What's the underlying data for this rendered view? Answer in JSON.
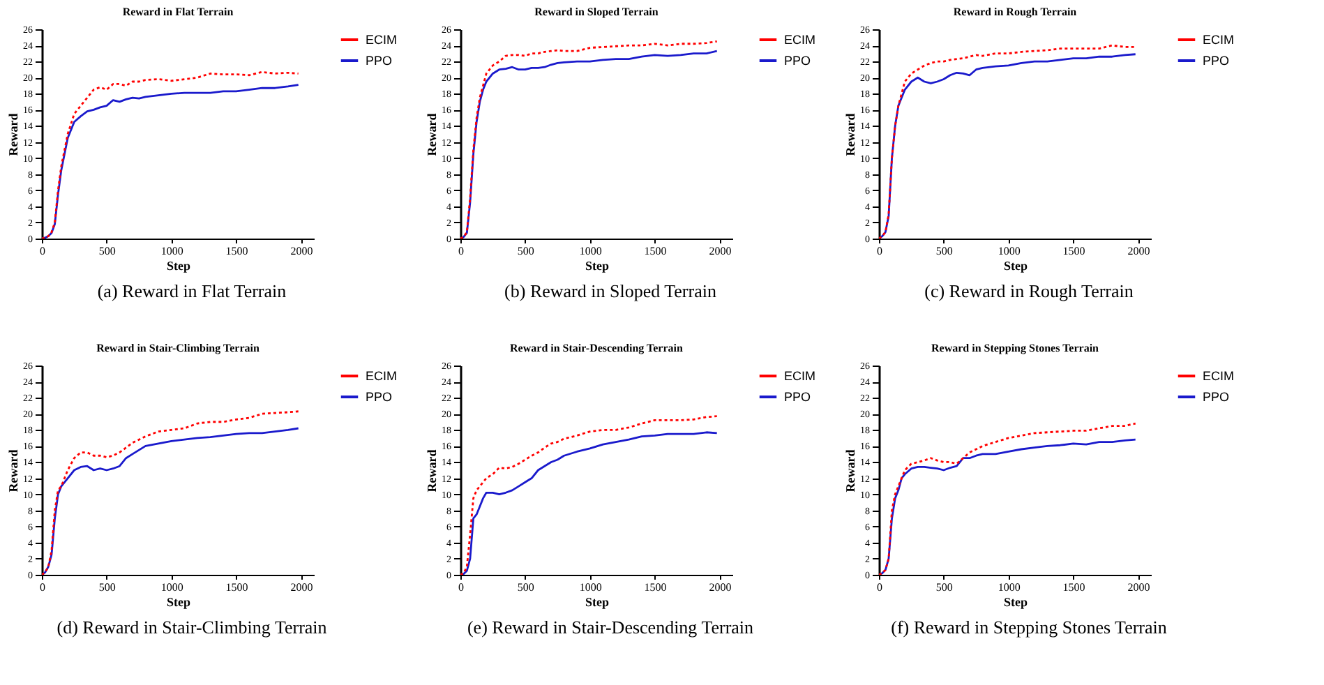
{
  "chart_data": [
    {
      "type": "line",
      "title": "Reward in Flat Terrain",
      "xlabel": "Step",
      "ylabel": "Reward",
      "annotations": [
        "(a) Reward in Flat Terrain"
      ],
      "xlim": [
        0,
        2100
      ],
      "ylim": [
        0,
        26
      ],
      "xticks": [
        0,
        500,
        1000,
        1500,
        2000
      ],
      "yticks": [
        0,
        2,
        4,
        6,
        8,
        10,
        12,
        14,
        16,
        18,
        20,
        22,
        24,
        26
      ],
      "grid": false,
      "legend": "top right",
      "x": [
        0,
        25,
        50,
        75,
        100,
        125,
        150,
        175,
        200,
        250,
        300,
        350,
        400,
        450,
        500,
        550,
        600,
        650,
        700,
        750,
        800,
        900,
        1000,
        1100,
        1200,
        1300,
        1400,
        1500,
        1600,
        1700,
        1800,
        1900,
        1980
      ],
      "series": [
        {
          "name": "ECIM",
          "color": "#ff0000",
          "line_style": "dotted",
          "values": [
            0,
            0.1,
            0.3,
            0.8,
            2,
            6,
            9,
            11,
            13,
            15.5,
            16.5,
            17.5,
            18.5,
            18.8,
            18.5,
            19.2,
            19.2,
            19,
            19.5,
            19.5,
            19.7,
            19.8,
            19.6,
            19.8,
            20,
            20.5,
            20.4,
            20.4,
            20.3,
            20.7,
            20.5,
            20.6,
            20.5
          ]
        },
        {
          "name": "PPO",
          "color": "#1a1acc",
          "line_style": "solid",
          "values": [
            0,
            0.1,
            0.3,
            0.7,
            1.8,
            5.5,
            8.5,
            10.5,
            12.5,
            14.5,
            15.2,
            15.8,
            16,
            16.3,
            16.5,
            17.2,
            17,
            17.3,
            17.5,
            17.4,
            17.6,
            17.8,
            18,
            18.1,
            18.1,
            18.1,
            18.3,
            18.3,
            18.5,
            18.7,
            18.7,
            18.9,
            19.1
          ]
        }
      ]
    },
    {
      "type": "line",
      "title": "Reward in Sloped Terrain",
      "xlabel": "Step",
      "ylabel": "Reward",
      "annotations": [
        "(b) Reward in Sloped Terrain"
      ],
      "xlim": [
        0,
        2100
      ],
      "ylim": [
        0,
        26
      ],
      "xticks": [
        0,
        500,
        1000,
        1500,
        2000
      ],
      "yticks": [
        0,
        2,
        4,
        6,
        8,
        10,
        12,
        14,
        16,
        18,
        20,
        22,
        24,
        26
      ],
      "grid": false,
      "legend": "top right",
      "x": [
        0,
        25,
        50,
        75,
        100,
        125,
        150,
        175,
        200,
        250,
        300,
        350,
        400,
        450,
        500,
        550,
        600,
        650,
        700,
        750,
        800,
        900,
        1000,
        1100,
        1200,
        1300,
        1400,
        1500,
        1600,
        1700,
        1800,
        1900,
        1980
      ],
      "series": [
        {
          "name": "ECIM",
          "color": "#ff0000",
          "line_style": "dotted",
          "values": [
            0,
            0.2,
            0.8,
            5,
            11,
            15,
            17.5,
            19,
            20.5,
            21.5,
            22,
            22.7,
            22.8,
            22.8,
            22.7,
            23,
            23,
            23.2,
            23.3,
            23.4,
            23.3,
            23.3,
            23.7,
            23.8,
            23.9,
            24,
            24,
            24.2,
            24,
            24.2,
            24.2,
            24.3,
            24.5
          ]
        },
        {
          "name": "PPO",
          "color": "#1a1acc",
          "line_style": "solid",
          "values": [
            0,
            0.2,
            0.7,
            4.5,
            10.5,
            14.5,
            17,
            18.5,
            19.5,
            20.5,
            21,
            21.1,
            21.3,
            21,
            21,
            21.2,
            21.2,
            21.3,
            21.6,
            21.8,
            21.9,
            22,
            22,
            22.2,
            22.3,
            22.3,
            22.6,
            22.8,
            22.7,
            22.8,
            23,
            23,
            23.3
          ]
        }
      ]
    },
    {
      "type": "line",
      "title": "Reward in Rough Terrain",
      "xlabel": "Step",
      "ylabel": "Reward",
      "annotations": [
        "(c) Reward in Rough Terrain"
      ],
      "xlim": [
        0,
        2100
      ],
      "ylim": [
        0,
        26
      ],
      "xticks": [
        0,
        500,
        1000,
        1500,
        2000
      ],
      "yticks": [
        0,
        2,
        4,
        6,
        8,
        10,
        12,
        14,
        16,
        18,
        20,
        22,
        24,
        26
      ],
      "grid": false,
      "legend": "top right",
      "x": [
        0,
        25,
        50,
        75,
        100,
        125,
        150,
        175,
        200,
        250,
        300,
        350,
        400,
        450,
        500,
        550,
        600,
        650,
        700,
        750,
        800,
        900,
        1000,
        1100,
        1200,
        1300,
        1400,
        1500,
        1600,
        1700,
        1800,
        1900,
        1980
      ],
      "series": [
        {
          "name": "ECIM",
          "color": "#ff0000",
          "line_style": "dotted",
          "values": [
            0,
            0.3,
            0.8,
            3,
            10,
            14,
            16.5,
            18,
            19.5,
            20.5,
            21,
            21.5,
            21.8,
            22,
            22,
            22.2,
            22.3,
            22.4,
            22.6,
            22.8,
            22.7,
            23,
            23,
            23.2,
            23.3,
            23.4,
            23.6,
            23.6,
            23.6,
            23.6,
            24,
            23.8,
            23.8
          ]
        },
        {
          "name": "PPO",
          "color": "#1a1acc",
          "line_style": "solid",
          "values": [
            0,
            0.3,
            0.8,
            2.8,
            10,
            14,
            16.5,
            17.5,
            18.5,
            19.5,
            20,
            19.5,
            19.3,
            19.5,
            19.8,
            20.3,
            20.6,
            20.5,
            20.3,
            21,
            21.2,
            21.4,
            21.5,
            21.8,
            22,
            22,
            22.2,
            22.4,
            22.4,
            22.6,
            22.6,
            22.8,
            22.9
          ]
        }
      ]
    },
    {
      "type": "line",
      "title": "Reward in Stair-Climbing Terrain",
      "xlabel": "Step",
      "ylabel": "Reward",
      "annotations": [
        "(d) Reward in Stair-Climbing Terrain"
      ],
      "xlim": [
        0,
        2100
      ],
      "ylim": [
        0,
        26
      ],
      "xticks": [
        0,
        500,
        1000,
        1500,
        2000
      ],
      "yticks": [
        0,
        2,
        4,
        6,
        8,
        10,
        12,
        14,
        16,
        18,
        20,
        22,
        24,
        26
      ],
      "grid": false,
      "legend": "top right",
      "x": [
        0,
        25,
        50,
        75,
        100,
        125,
        150,
        175,
        200,
        250,
        300,
        350,
        400,
        450,
        500,
        550,
        600,
        650,
        700,
        750,
        800,
        900,
        1000,
        1100,
        1200,
        1300,
        1400,
        1500,
        1600,
        1700,
        1800,
        1900,
        1980
      ],
      "series": [
        {
          "name": "ECIM",
          "color": "#ff0000",
          "line_style": "dotted",
          "values": [
            0,
            0.3,
            1,
            3,
            8,
            10.5,
            11,
            12,
            13,
            14.5,
            15.2,
            15.2,
            14.8,
            14.8,
            14.6,
            14.8,
            15.2,
            15.8,
            16.4,
            16.8,
            17.2,
            17.8,
            18,
            18.2,
            18.8,
            19,
            19,
            19.3,
            19.5,
            20,
            20.1,
            20.2,
            20.3
          ]
        },
        {
          "name": "PPO",
          "color": "#1a1acc",
          "line_style": "solid",
          "values": [
            0,
            0.3,
            1,
            2.5,
            7,
            10,
            11,
            11.5,
            12,
            13,
            13.4,
            13.5,
            13,
            13.2,
            13,
            13.2,
            13.5,
            14.5,
            15,
            15.5,
            16,
            16.3,
            16.6,
            16.8,
            17,
            17.1,
            17.3,
            17.5,
            17.6,
            17.6,
            17.8,
            18,
            18.2
          ]
        }
      ]
    },
    {
      "type": "line",
      "title": "Reward in Stair-Descending Terrain",
      "xlabel": "Step",
      "ylabel": "Reward",
      "annotations": [
        "(e) Reward in Stair-Descending Terrain"
      ],
      "xlim": [
        0,
        2100
      ],
      "ylim": [
        0,
        26
      ],
      "xticks": [
        0,
        500,
        1000,
        1500,
        2000
      ],
      "yticks": [
        0,
        2,
        4,
        6,
        8,
        10,
        12,
        14,
        16,
        18,
        20,
        22,
        24,
        26
      ],
      "grid": false,
      "legend": "top right",
      "x": [
        0,
        25,
        50,
        75,
        100,
        125,
        150,
        175,
        200,
        250,
        300,
        350,
        400,
        450,
        500,
        550,
        600,
        650,
        700,
        750,
        800,
        900,
        1000,
        1100,
        1200,
        1300,
        1400,
        1500,
        1600,
        1700,
        1800,
        1900,
        1980
      ],
      "series": [
        {
          "name": "ECIM",
          "color": "#ff0000",
          "line_style": "dotted",
          "values": [
            0,
            0.2,
            1,
            5,
            9.5,
            10.5,
            11,
            11.5,
            12,
            12.5,
            13.3,
            13.2,
            13.4,
            13.8,
            14.3,
            14.8,
            15.2,
            15.8,
            16.3,
            16.5,
            16.9,
            17.3,
            17.8,
            18,
            18,
            18.3,
            18.8,
            19.2,
            19.2,
            19.2,
            19.3,
            19.6,
            19.7
          ]
        },
        {
          "name": "PPO",
          "color": "#1a1acc",
          "line_style": "solid",
          "values": [
            0,
            0.1,
            0.5,
            2,
            7,
            7.5,
            8.5,
            9.5,
            10.2,
            10.2,
            10,
            10.2,
            10.5,
            11,
            11.5,
            12,
            13,
            13.5,
            14,
            14.3,
            14.8,
            15.3,
            15.7,
            16.2,
            16.5,
            16.8,
            17.2,
            17.3,
            17.5,
            17.5,
            17.5,
            17.7,
            17.6
          ]
        }
      ]
    },
    {
      "type": "line",
      "title": "Reward in Stepping Stones Terrain",
      "xlabel": "Step",
      "ylabel": "Reward",
      "annotations": [
        "(f) Reward in Stepping Stones Terrain"
      ],
      "xlim": [
        0,
        2100
      ],
      "ylim": [
        0,
        26
      ],
      "xticks": [
        0,
        500,
        1000,
        1500,
        2000
      ],
      "yticks": [
        0,
        2,
        4,
        6,
        8,
        10,
        12,
        14,
        16,
        18,
        20,
        22,
        24,
        26
      ],
      "grid": false,
      "legend": "top right",
      "x": [
        0,
        25,
        50,
        75,
        100,
        125,
        150,
        175,
        200,
        250,
        300,
        350,
        400,
        450,
        500,
        550,
        600,
        650,
        700,
        750,
        800,
        900,
        1000,
        1100,
        1200,
        1300,
        1400,
        1500,
        1600,
        1700,
        1800,
        1900,
        1980
      ],
      "series": [
        {
          "name": "ECIM",
          "color": "#ff0000",
          "line_style": "dotted",
          "values": [
            0,
            0.2,
            0.6,
            2,
            8,
            10,
            11,
            12,
            13,
            13.8,
            14,
            14.2,
            14.5,
            14.2,
            14,
            14,
            13.8,
            14.5,
            15.2,
            15.6,
            16,
            16.5,
            17,
            17.3,
            17.6,
            17.7,
            17.8,
            17.9,
            17.9,
            18.2,
            18.5,
            18.5,
            18.8
          ]
        },
        {
          "name": "PPO",
          "color": "#1a1acc",
          "line_style": "solid",
          "values": [
            0,
            0.2,
            0.6,
            2,
            7,
            9.5,
            10.5,
            12,
            12.5,
            13.2,
            13.4,
            13.4,
            13.3,
            13.2,
            13,
            13.3,
            13.5,
            14.5,
            14.5,
            14.8,
            15,
            15,
            15.3,
            15.6,
            15.8,
            16,
            16.1,
            16.3,
            16.2,
            16.5,
            16.5,
            16.7,
            16.8
          ]
        }
      ]
    }
  ]
}
